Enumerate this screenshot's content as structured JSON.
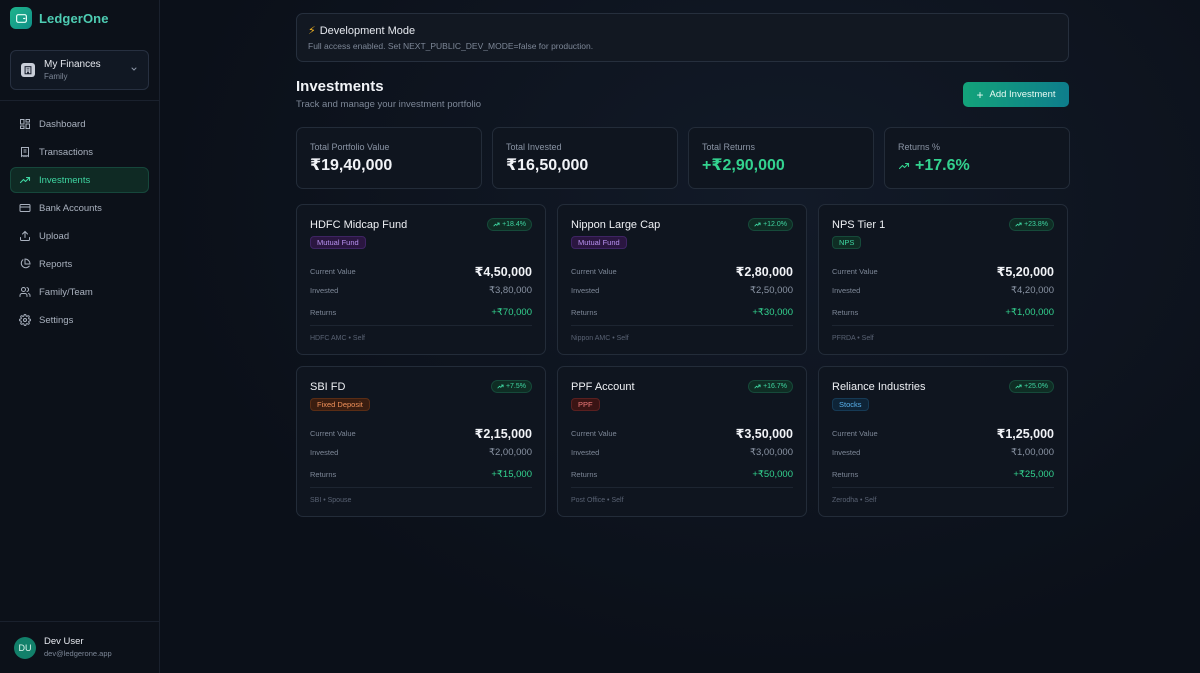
{
  "brand": {
    "name": "LedgerOne"
  },
  "org": {
    "name": "My Finances",
    "type": "Family"
  },
  "nav": [
    {
      "label": "Dashboard",
      "icon": "dashboard-icon",
      "active": false
    },
    {
      "label": "Transactions",
      "icon": "receipt-icon",
      "active": false
    },
    {
      "label": "Investments",
      "icon": "trending-up-icon",
      "active": true
    },
    {
      "label": "Bank Accounts",
      "icon": "credit-card-icon",
      "active": false
    },
    {
      "label": "Upload",
      "icon": "upload-icon",
      "active": false
    },
    {
      "label": "Reports",
      "icon": "pie-chart-icon",
      "active": false
    },
    {
      "label": "Family/Team",
      "icon": "users-icon",
      "active": false
    },
    {
      "label": "Settings",
      "icon": "gear-icon",
      "active": false
    }
  ],
  "user": {
    "initials": "DU",
    "name": "Dev User",
    "email": "dev@ledgerone.app"
  },
  "banner": {
    "title": "Development Mode",
    "subtitle": "Full access enabled. Set NEXT_PUBLIC_DEV_MODE=false for production."
  },
  "page": {
    "title": "Investments",
    "subtitle": "Track and manage your investment portfolio",
    "add_label": "Add Investment"
  },
  "stats": [
    {
      "label": "Total Portfolio Value",
      "value": "₹19,40,000",
      "green": false
    },
    {
      "label": "Total Invested",
      "value": "₹16,50,000",
      "green": false
    },
    {
      "label": "Total Returns",
      "value": "+₹2,90,000",
      "green": true
    },
    {
      "label": "Returns %",
      "value": "+17.6%",
      "green": true
    }
  ],
  "labels": {
    "current": "Current Value",
    "invested": "Invested",
    "returns": "Returns"
  },
  "investments": [
    {
      "name": "HDFC Midcap Fund",
      "pct": "+18.4%",
      "type": "Mutual Fund",
      "type_class": "type-mf",
      "current": "₹4,50,000",
      "invested": "₹3,80,000",
      "returns": "+₹70,000",
      "footer": "HDFC AMC • Self"
    },
    {
      "name": "Nippon Large Cap",
      "pct": "+12.0%",
      "type": "Mutual Fund",
      "type_class": "type-mf",
      "current": "₹2,80,000",
      "invested": "₹2,50,000",
      "returns": "+₹30,000",
      "footer": "Nippon AMC • Self"
    },
    {
      "name": "NPS Tier 1",
      "pct": "+23.8%",
      "type": "NPS",
      "type_class": "type-nps",
      "current": "₹5,20,000",
      "invested": "₹4,20,000",
      "returns": "+₹1,00,000",
      "footer": "PFRDA • Self"
    },
    {
      "name": "SBI FD",
      "pct": "+7.5%",
      "type": "Fixed Deposit",
      "type_class": "type-fd",
      "current": "₹2,15,000",
      "invested": "₹2,00,000",
      "returns": "+₹15,000",
      "footer": "SBI • Spouse"
    },
    {
      "name": "PPF Account",
      "pct": "+16.7%",
      "type": "PPF",
      "type_class": "type-ppf",
      "current": "₹3,50,000",
      "invested": "₹3,00,000",
      "returns": "+₹50,000",
      "footer": "Post Office • Self"
    },
    {
      "name": "Reliance Industries",
      "pct": "+25.0%",
      "type": "Stocks",
      "type_class": "type-stock",
      "current": "₹1,25,000",
      "invested": "₹1,00,000",
      "returns": "+₹25,000",
      "footer": "Zerodha • Self"
    }
  ]
}
